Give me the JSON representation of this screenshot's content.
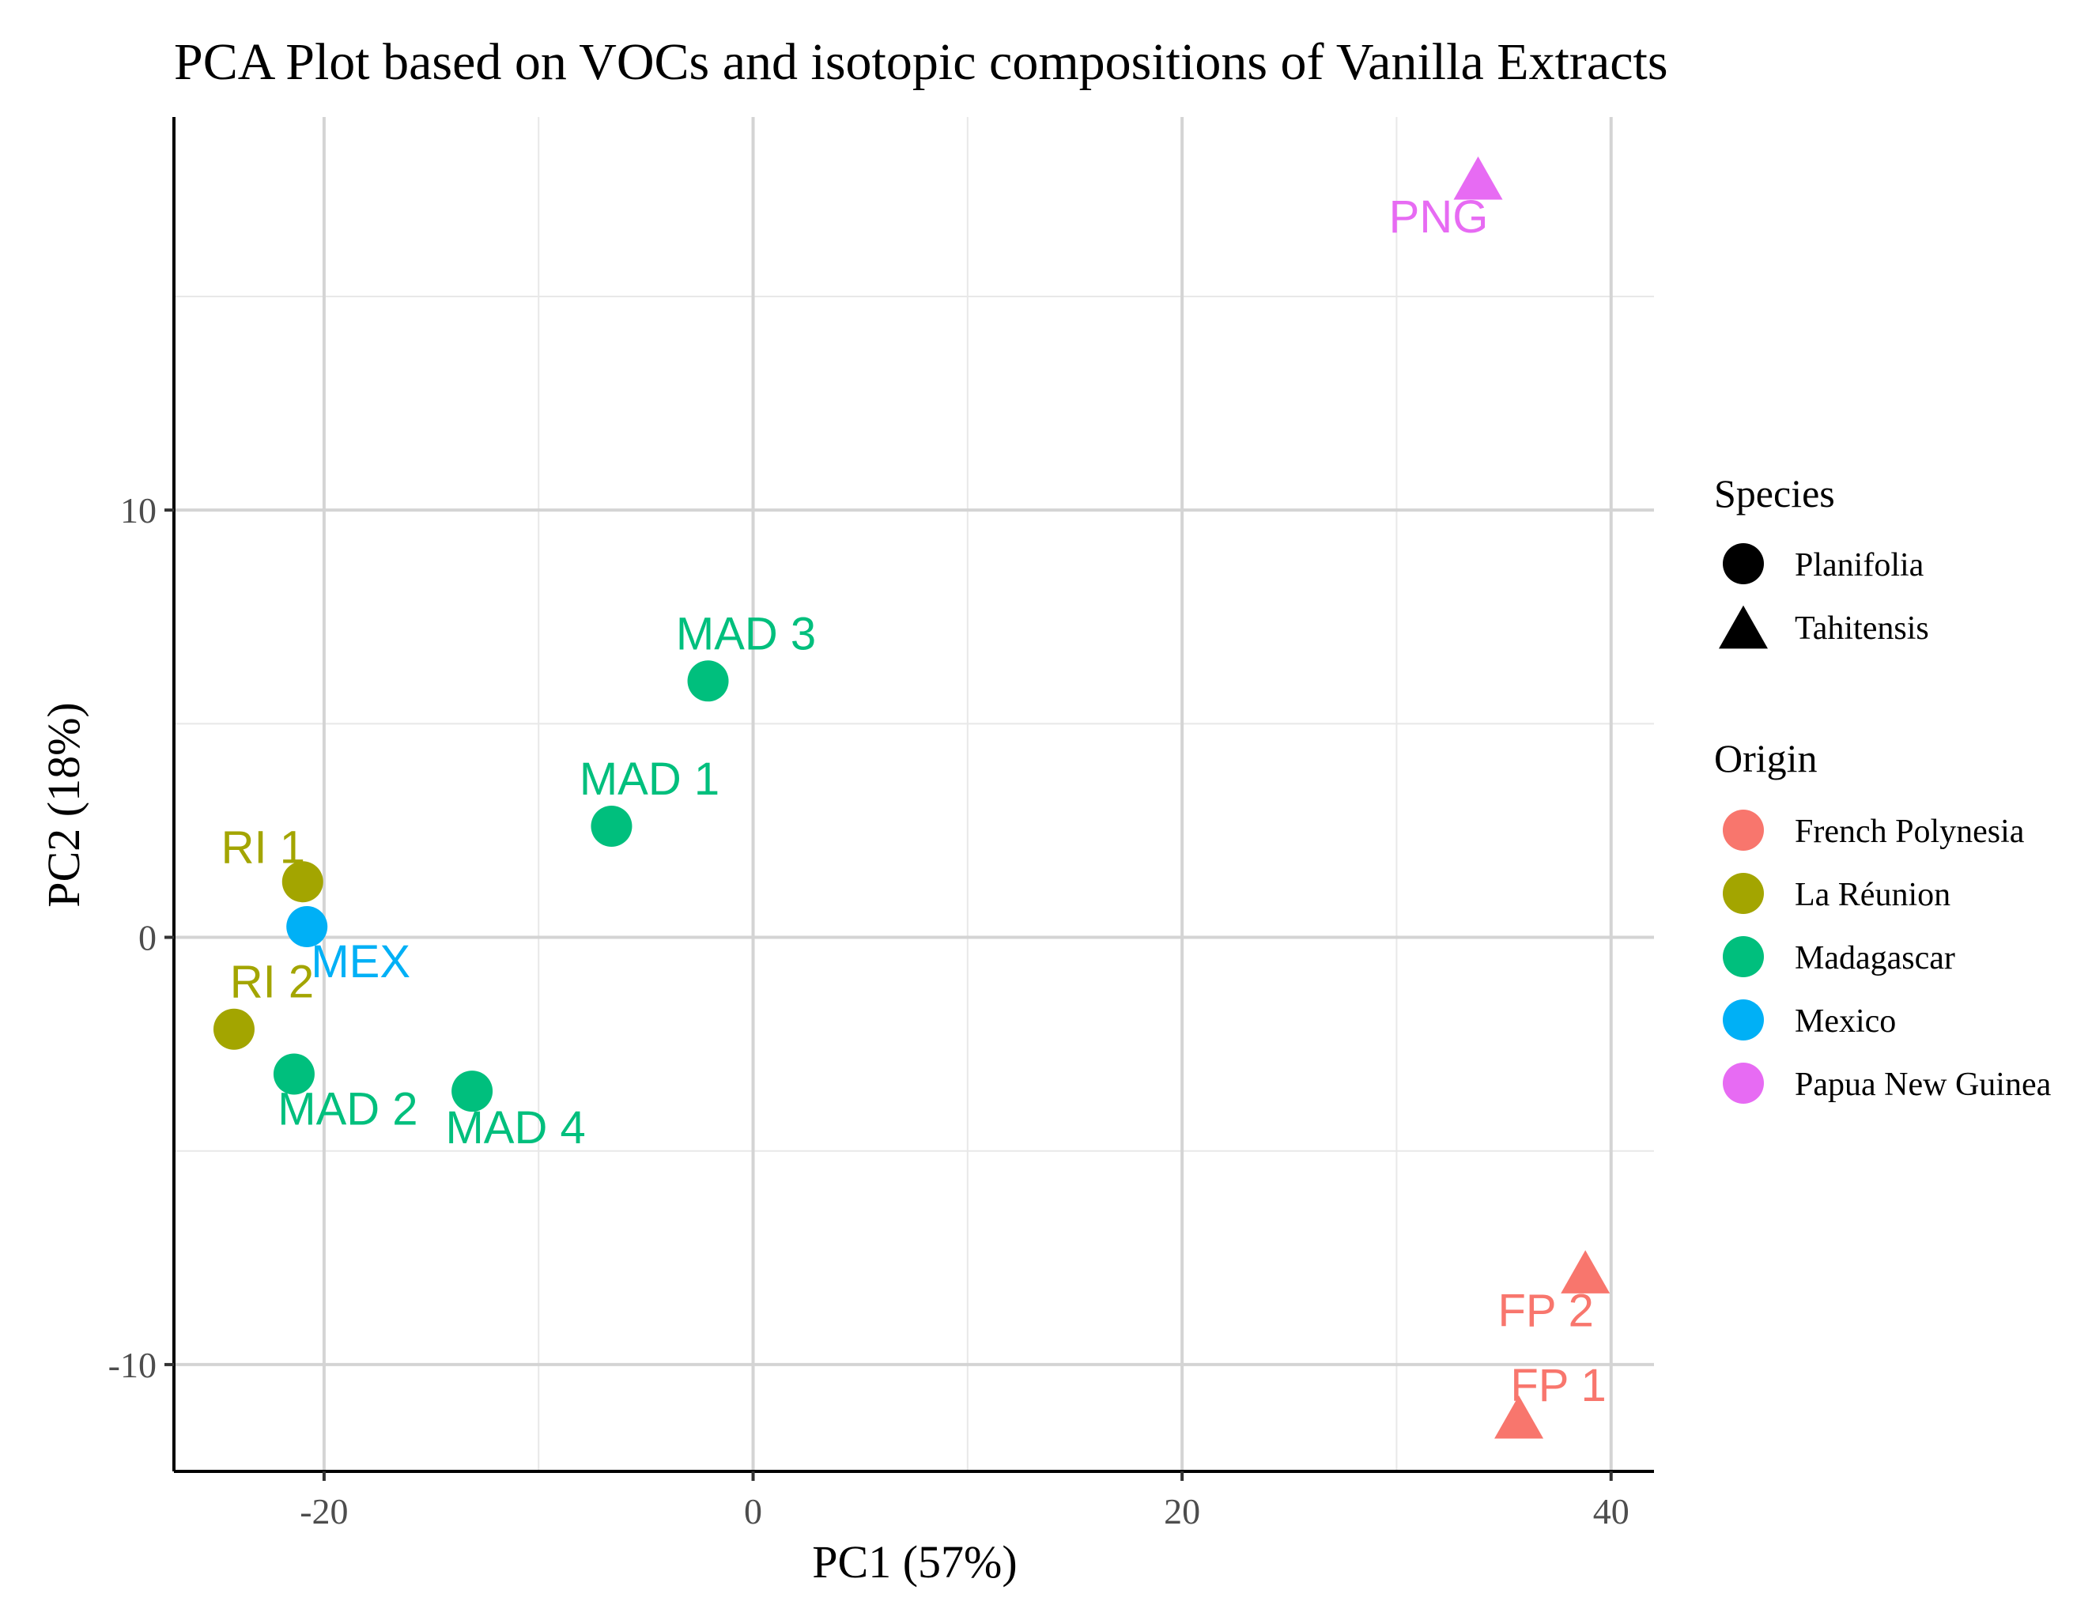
{
  "chart_data": {
    "type": "scatter",
    "title": "PCA Plot based on VOCs and isotopic compositions of Vanilla Extracts",
    "xlabel": "PC1 (57%)",
    "ylabel": "PC2 (18%)",
    "xlim": [
      -27,
      42
    ],
    "ylim": [
      -12.5,
      19.2
    ],
    "x_major_ticks": [
      -20,
      0,
      20,
      40
    ],
    "x_minor_ticks": [
      -10,
      10,
      30
    ],
    "y_major_ticks": [
      -10,
      0,
      10
    ],
    "y_minor_ticks": [
      -5,
      5,
      15
    ],
    "x_tick_labels": [
      "-20",
      "0",
      "20",
      "40"
    ],
    "y_tick_labels": [
      "-10",
      "0",
      "10"
    ],
    "grid": true,
    "legend_position": "right",
    "points": [
      {
        "label": "PNG",
        "x": 33.8,
        "y": 17.7,
        "species": "Tahitensis",
        "origin": "Papua New Guinea",
        "label_side": "below-left"
      },
      {
        "label": "MAD 3",
        "x": -2.1,
        "y": 6.0,
        "species": "Planifolia",
        "origin": "Madagascar",
        "label_side": "above"
      },
      {
        "label": "MAD 1",
        "x": -6.6,
        "y": 2.6,
        "species": "Planifolia",
        "origin": "Madagascar",
        "label_side": "above"
      },
      {
        "label": "RI 1",
        "x": -21.0,
        "y": 1.3,
        "species": "Planifolia",
        "origin": "La Réunion",
        "label_side": "above-left"
      },
      {
        "label": "MEX",
        "x": -20.8,
        "y": 0.25,
        "species": "Planifolia",
        "origin": "Mexico",
        "label_side": "below-right"
      },
      {
        "label": "RI 2",
        "x": -24.2,
        "y": -2.15,
        "species": "Planifolia",
        "origin": "La Réunion",
        "label_side": "above"
      },
      {
        "label": "MAD 2",
        "x": -21.4,
        "y": -3.2,
        "species": "Planifolia",
        "origin": "Madagascar",
        "label_side": "below-right"
      },
      {
        "label": "MAD 4",
        "x": -13.1,
        "y": -3.6,
        "species": "Planifolia",
        "origin": "Madagascar",
        "label_side": "below"
      },
      {
        "label": "FP 2",
        "x": 38.8,
        "y": -7.9,
        "species": "Tahitensis",
        "origin": "French Polynesia",
        "label_side": "below-left"
      },
      {
        "label": "FP 1",
        "x": 35.7,
        "y": -11.3,
        "species": "Tahitensis",
        "origin": "French Polynesia",
        "label_side": "above-right"
      }
    ],
    "legend": {
      "species_title": "Species",
      "species": [
        {
          "name": "Planifolia",
          "shape": "circle"
        },
        {
          "name": "Tahitensis",
          "shape": "triangle"
        }
      ],
      "origin_title": "Origin",
      "origins": [
        {
          "name": "French Polynesia",
          "color": "#F8766D"
        },
        {
          "name": "La Réunion",
          "color": "#A3A500"
        },
        {
          "name": "Madagascar",
          "color": "#00BF7D"
        },
        {
          "name": "Mexico",
          "color": "#00B0F6"
        },
        {
          "name": "Papua New Guinea",
          "color": "#E76BF3"
        }
      ]
    },
    "colors": {
      "grid_major": "#d4d4d4",
      "grid_minor": "#e8e8e8",
      "axis": "#000000",
      "tick_text": "#4d4d4d",
      "text": "#000000"
    }
  }
}
